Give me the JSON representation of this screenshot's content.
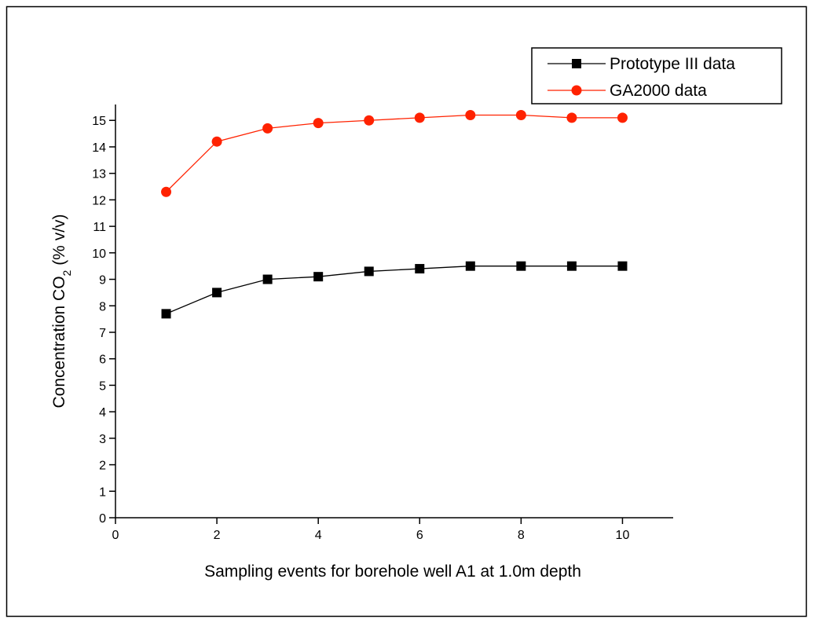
{
  "chart_data": {
    "type": "line",
    "xlabel": "Sampling events for borehole well A1 at 1.0m depth",
    "ylabel": [
      "Concentration CO",
      "2",
      " (% v/v)"
    ],
    "xlim": [
      0,
      11
    ],
    "ylim": [
      0,
      15.6
    ],
    "xticks": [
      0,
      2,
      4,
      6,
      8,
      10
    ],
    "yticks": [
      0,
      1,
      2,
      3,
      4,
      5,
      6,
      7,
      8,
      9,
      10,
      11,
      12,
      13,
      14,
      15
    ],
    "x": [
      1,
      2,
      3,
      4,
      5,
      6,
      7,
      8,
      9,
      10
    ],
    "series": [
      {
        "name": "Prototype III data",
        "color": "#000000",
        "marker": "square",
        "values": [
          7.7,
          8.5,
          9.0,
          9.1,
          9.3,
          9.4,
          9.5,
          9.5,
          9.5,
          9.5
        ]
      },
      {
        "name": "GA2000 data",
        "color": "#ff2200",
        "marker": "circle",
        "values": [
          12.3,
          14.2,
          14.7,
          14.9,
          15.0,
          15.1,
          15.2,
          15.2,
          15.1,
          15.1
        ]
      }
    ],
    "legend": "top-right"
  }
}
